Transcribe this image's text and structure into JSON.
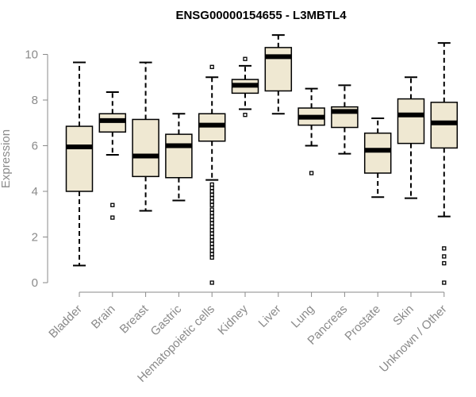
{
  "chart_data": {
    "type": "box",
    "title": "ENSG00000154655 - L3MBTL4",
    "xlabel": "",
    "ylabel": "Expression",
    "ylim": [
      0,
      10.5
    ],
    "yticks": [
      0,
      2,
      4,
      6,
      8,
      10
    ],
    "box_fill": "#efe8d2",
    "categories": [
      "Bladder",
      "Brain",
      "Breast",
      "Gastric",
      "Hematopoietic cells",
      "Kidney",
      "Liver",
      "Lung",
      "Pancreas",
      "Prostate",
      "Skin",
      "Unknown / Other"
    ],
    "boxes": [
      {
        "label": "Bladder",
        "whisker_low": 0.75,
        "q1": 4.0,
        "median": 5.95,
        "q3": 6.85,
        "whisker_high": 9.65,
        "outliers": []
      },
      {
        "label": "Brain",
        "whisker_low": 5.6,
        "q1": 6.6,
        "median": 7.1,
        "q3": 7.4,
        "whisker_high": 8.35,
        "outliers": [
          3.4,
          2.85
        ]
      },
      {
        "label": "Breast",
        "whisker_low": 3.15,
        "q1": 4.65,
        "median": 5.55,
        "q3": 7.15,
        "whisker_high": 9.65,
        "outliers": []
      },
      {
        "label": "Gastric",
        "whisker_low": 3.6,
        "q1": 4.6,
        "median": 6.0,
        "q3": 6.5,
        "whisker_high": 7.4,
        "outliers": []
      },
      {
        "label": "Hematopoietic cells",
        "whisker_low": 4.5,
        "q1": 6.2,
        "median": 6.9,
        "q3": 7.4,
        "whisker_high": 9.0,
        "outliers": [
          9.45,
          4.3,
          4.15,
          4.0,
          3.85,
          3.7,
          3.55,
          3.4,
          3.2,
          3.05,
          2.9,
          2.75,
          2.6,
          2.45,
          2.3,
          2.15,
          2.0,
          1.85,
          1.7,
          1.55,
          1.4,
          1.25,
          1.1,
          0.0
        ]
      },
      {
        "label": "Kidney",
        "whisker_low": 7.6,
        "q1": 8.3,
        "median": 8.65,
        "q3": 8.9,
        "whisker_high": 9.5,
        "outliers": [
          9.8,
          7.35
        ]
      },
      {
        "label": "Liver",
        "whisker_low": 7.4,
        "q1": 8.4,
        "median": 9.9,
        "q3": 10.3,
        "whisker_high": 10.85,
        "outliers": []
      },
      {
        "label": "Lung",
        "whisker_low": 6.0,
        "q1": 6.9,
        "median": 7.25,
        "q3": 7.65,
        "whisker_high": 8.5,
        "outliers": [
          4.8
        ]
      },
      {
        "label": "Pancreas",
        "whisker_low": 5.65,
        "q1": 6.8,
        "median": 7.5,
        "q3": 7.7,
        "whisker_high": 8.65,
        "outliers": []
      },
      {
        "label": "Prostate",
        "whisker_low": 3.75,
        "q1": 4.8,
        "median": 5.8,
        "q3": 6.55,
        "whisker_high": 7.2,
        "outliers": []
      },
      {
        "label": "Skin",
        "whisker_low": 3.7,
        "q1": 6.1,
        "median": 7.35,
        "q3": 8.05,
        "whisker_high": 9.0,
        "outliers": []
      },
      {
        "label": "Unknown / Other",
        "whisker_low": 2.9,
        "q1": 5.9,
        "median": 7.0,
        "q3": 7.9,
        "whisker_high": 10.5,
        "outliers": [
          1.5,
          1.15,
          0.85,
          0.0
        ]
      }
    ]
  }
}
